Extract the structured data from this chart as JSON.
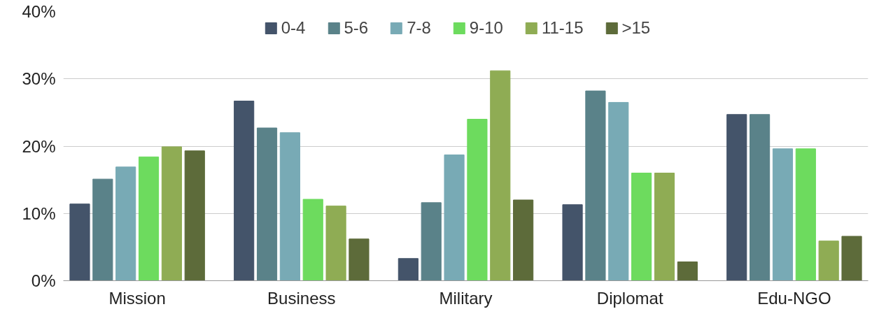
{
  "chart_data": {
    "type": "bar",
    "categories": [
      "Mission",
      "Business",
      "Military",
      "Diplomat",
      "Edu-NGO"
    ],
    "series": [
      {
        "name": "0-4",
        "color": "#44546a",
        "values": [
          11.4,
          26.7,
          3.3,
          11.3,
          24.7
        ]
      },
      {
        "name": "5-6",
        "color": "#5a8289",
        "values": [
          15.1,
          22.7,
          11.6,
          28.2,
          24.7
        ]
      },
      {
        "name": "7-8",
        "color": "#78aab5",
        "values": [
          16.9,
          22.0,
          18.7,
          26.5,
          19.6
        ]
      },
      {
        "name": "9-10",
        "color": "#6ddb5e",
        "values": [
          18.4,
          12.1,
          24.0,
          16.0,
          19.6
        ]
      },
      {
        "name": "11-15",
        "color": "#8fac54",
        "values": [
          19.9,
          11.1,
          31.2,
          16.0,
          5.9
        ]
      },
      {
        "name": ">15",
        "color": "#5d6b3a",
        "values": [
          19.3,
          6.2,
          12.0,
          2.8,
          6.6
        ]
      }
    ],
    "ylim": [
      0,
      40
    ],
    "yticks": [
      {
        "value": 0,
        "label": "0%"
      },
      {
        "value": 10,
        "label": "10%"
      },
      {
        "value": 20,
        "label": "20%"
      },
      {
        "value": 30,
        "label": "30%"
      },
      {
        "value": 40,
        "label": "40%"
      }
    ],
    "grid": "y",
    "legend": "top"
  }
}
